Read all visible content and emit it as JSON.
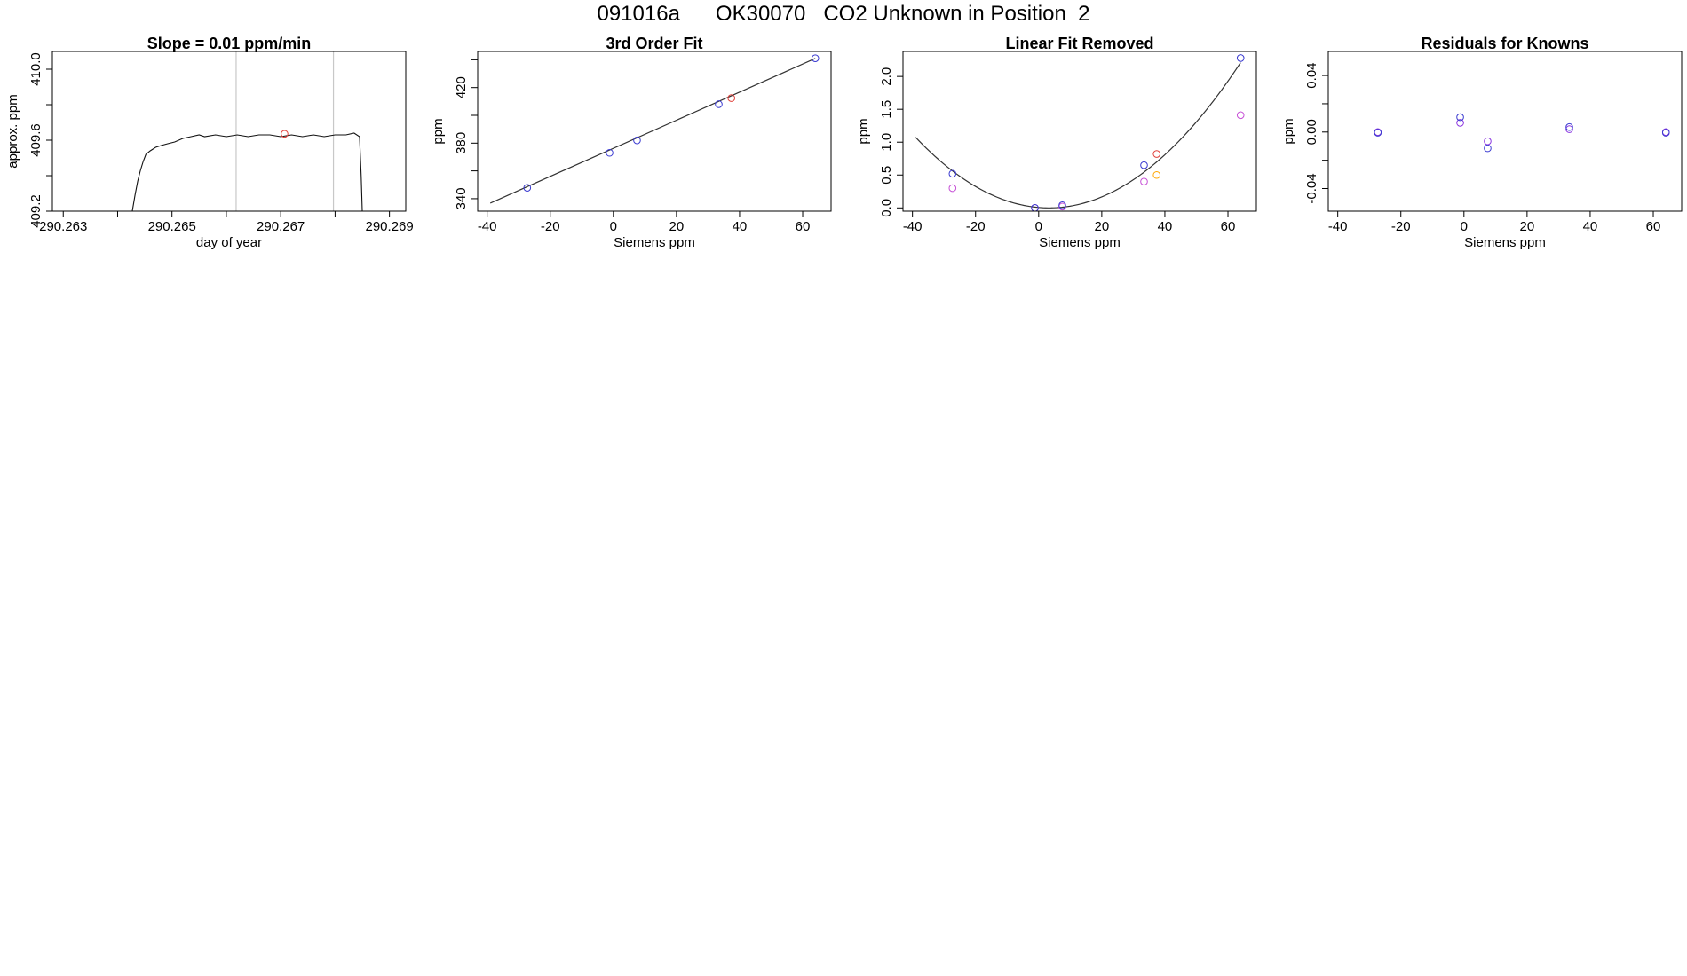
{
  "page_title": "091016a      OK30070   CO2 Unknown in Position  2",
  "colors": {
    "known": "#3a3ad0",
    "unknown": "#e0403a",
    "residual_fit": "#8a35e0",
    "linear_resid": "#c64fd6",
    "linear_resid_unknown": "#ffa500",
    "line": "#333333",
    "vline": "#c8c8c8"
  },
  "chart_data": [
    {
      "type": "line",
      "title": "Slope =  0.01  ppm/min",
      "xlabel": "day of year",
      "ylabel": "approx. ppm",
      "xlim": [
        290.2628,
        290.2693
      ],
      "ylim": [
        409.2,
        410.1
      ],
      "x_ticks": [
        290.263,
        290.265,
        290.267,
        290.269
      ],
      "x_tick_labels": [
        "290.263",
        "290.265",
        "290.267",
        "290.269"
      ],
      "x_minor_ticks": [
        290.264,
        290.266,
        290.268
      ],
      "y_ticks": [
        409.2,
        409.6,
        410.0
      ],
      "y_tick_labels": [
        "409.2",
        "409.6",
        "410.0"
      ],
      "y_minor_ticks": [
        409.4,
        409.8
      ],
      "vlines": [
        290.26618,
        290.26797
      ],
      "series": [
        {
          "x": [
            290.26427,
            290.26432,
            290.26437,
            290.26442,
            290.26447,
            290.26452,
            290.2646,
            290.2647,
            290.2648,
            290.26492,
            290.26505,
            290.2652,
            290.26535,
            290.2655,
            290.2656,
            290.2658,
            290.266,
            290.2662,
            290.2664,
            290.2666,
            290.2668,
            290.267,
            290.2672,
            290.2674,
            290.2676,
            290.2678,
            290.268,
            290.2682,
            290.26835,
            290.26845,
            290.26848,
            290.2685
          ],
          "y": [
            409.2,
            409.29,
            409.37,
            409.43,
            409.48,
            409.52,
            409.54,
            409.56,
            409.57,
            409.58,
            409.59,
            409.61,
            409.62,
            409.63,
            409.62,
            409.63,
            409.62,
            409.63,
            409.62,
            409.63,
            409.63,
            409.62,
            409.63,
            409.62,
            409.63,
            409.62,
            409.63,
            409.63,
            409.64,
            409.62,
            409.4,
            409.2
          ]
        }
      ],
      "points": [
        {
          "x": 290.26707,
          "y": 409.636,
          "role": "unknown"
        }
      ]
    },
    {
      "type": "scatter",
      "title": "3rd Order Fit",
      "xlabel": "Siemens ppm",
      "ylabel": "ppm",
      "xlim": [
        -43,
        69
      ],
      "ylim": [
        331,
        446
      ],
      "x_ticks": [
        -40,
        -20,
        0,
        20,
        40,
        60
      ],
      "x_tick_labels": [
        "-40",
        "-20",
        "0",
        "20",
        "40",
        "60"
      ],
      "y_ticks": [
        340,
        380,
        420
      ],
      "y_tick_labels": [
        "340",
        "380",
        "420"
      ],
      "y_minor_ticks": [
        360,
        400,
        440
      ],
      "fit_line": {
        "x": [
          -39,
          64
        ],
        "y": [
          336.8,
          441.0
        ]
      },
      "series": [
        {
          "name": "",
          "role": "known",
          "x": [
            -27.3,
            -1.2,
            7.5,
            33.4,
            64.0
          ],
          "y": [
            347.8,
            373.0,
            382.0,
            408.0,
            441.1
          ]
        },
        {
          "name": "",
          "role": "unknown",
          "x": [
            37.4
          ],
          "y": [
            412.4
          ]
        }
      ]
    },
    {
      "type": "scatter",
      "title": "Linear Fit Removed",
      "xlabel": "Siemens ppm",
      "ylabel": "ppm",
      "xlim": [
        -43,
        69
      ],
      "ylim": [
        -0.05,
        2.38
      ],
      "x_ticks": [
        -40,
        -20,
        0,
        20,
        40,
        60
      ],
      "x_tick_labels": [
        "-40",
        "-20",
        "0",
        "20",
        "40",
        "60"
      ],
      "y_ticks": [
        0.0,
        0.5,
        1.0,
        1.5,
        2.0
      ],
      "y_tick_labels": [
        "0.0",
        "0.5",
        "1.0",
        "1.5",
        "2.0"
      ],
      "fit_curve": {
        "x_start": -39,
        "x_end": 64,
        "vertex_x": 3.3,
        "vertex_y": 0.0,
        "a": 0.0006
      },
      "series": [
        {
          "name": "",
          "role": "known",
          "x": [
            -27.3,
            -1.2,
            7.5,
            33.4,
            64.0
          ],
          "y": [
            0.52,
            0.0,
            0.04,
            0.65,
            2.28
          ]
        },
        {
          "name": "",
          "role": "unknown",
          "x": [
            37.4
          ],
          "y": [
            0.82
          ]
        },
        {
          "name": "",
          "role": "linear_resid",
          "x": [
            -27.3,
            -1.2,
            7.5,
            33.4,
            64.0
          ],
          "y": [
            0.3,
            0.0,
            0.02,
            0.4,
            1.41
          ]
        },
        {
          "name": "",
          "role": "linear_resid_unknown",
          "x": [
            37.4
          ],
          "y": [
            0.5
          ]
        }
      ]
    },
    {
      "type": "scatter",
      "title": "Residuals for Knowns",
      "xlabel": "Siemens ppm",
      "ylabel": "ppm",
      "xlim": [
        -43,
        69
      ],
      "ylim": [
        -0.056,
        0.057
      ],
      "x_ticks": [
        -40,
        -20,
        0,
        20,
        40,
        60
      ],
      "x_tick_labels": [
        "-40",
        "-20",
        "0",
        "20",
        "40",
        "60"
      ],
      "y_ticks": [
        -0.04,
        0.0,
        0.04
      ],
      "y_tick_labels": [
        "-0.04",
        "0.00",
        "0.04"
      ],
      "y_minor_ticks": [
        -0.02,
        0.02
      ],
      "series": [
        {
          "name": "",
          "role": "known",
          "x": [
            -27.3,
            -1.2,
            7.5,
            33.4,
            64.0
          ],
          "y": [
            -0.0005,
            0.0105,
            -0.0115,
            0.0035,
            -0.0005
          ]
        },
        {
          "name": "",
          "role": "residual_fit",
          "x": [
            -27.3,
            -1.2,
            7.5,
            33.4,
            64.0
          ],
          "y": [
            0.0,
            0.0065,
            -0.0065,
            0.002,
            0.0
          ]
        }
      ]
    }
  ]
}
